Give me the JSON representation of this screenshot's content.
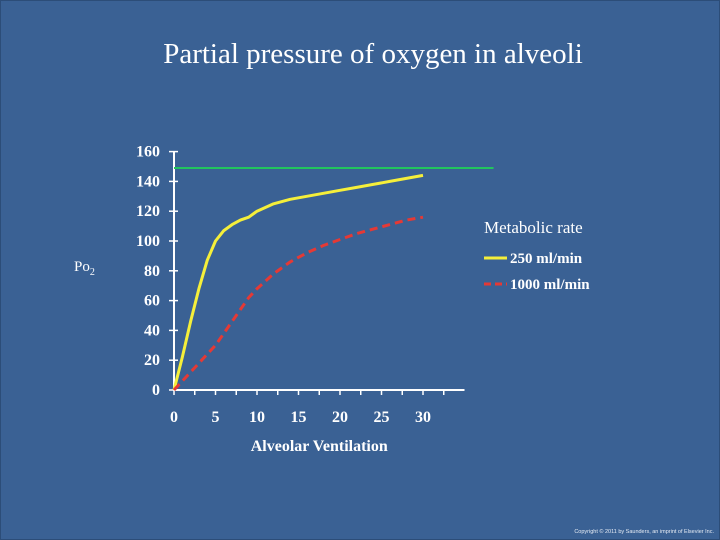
{
  "slide": {
    "title": "Partial pressure of oxygen in alveoli",
    "copyright": "Copyright © 2011 by Saunders, an imprint of Elsevier Inc."
  },
  "chart_data": {
    "type": "line",
    "title": "Partial pressure of oxygen in alveoli",
    "xlabel": "Alveolar Ventilation",
    "ylabel": "Po",
    "ylabel_subscript": "2",
    "xlim": [
      0,
      35
    ],
    "ylim": [
      0,
      160
    ],
    "xticks": [
      0,
      5,
      10,
      15,
      20,
      25,
      30
    ],
    "yticks": [
      0,
      20,
      40,
      60,
      80,
      100,
      120,
      140,
      160
    ],
    "legend_title": "Metabolic rate",
    "legend_position": "right",
    "grid": false,
    "reference_line": {
      "y": 149,
      "x": [
        0,
        38.5
      ],
      "color": "#22c55e"
    },
    "series": [
      {
        "name": "250 ml/min",
        "color": "#f5ef3a",
        "dash": "solid",
        "x": [
          0,
          1,
          2,
          3,
          4,
          5,
          6,
          7,
          8,
          9,
          10,
          12,
          14,
          16,
          18,
          20,
          22,
          24,
          26,
          28,
          30
        ],
        "y": [
          0,
          22,
          46,
          68,
          87,
          100,
          107,
          111,
          114,
          116,
          120,
          125,
          128,
          130,
          132,
          134,
          136,
          138,
          140,
          142,
          144
        ]
      },
      {
        "name": "1000 ml/min",
        "color": "#e53935",
        "dash": "dashed",
        "x": [
          0,
          1,
          2,
          3,
          4,
          5,
          6,
          7,
          8,
          9,
          10,
          12,
          14,
          16,
          18,
          20,
          22,
          24,
          26,
          28,
          30
        ],
        "y": [
          0,
          6,
          12,
          18,
          24,
          30,
          38,
          46,
          54,
          62,
          68,
          78,
          86,
          92,
          97,
          101,
          105,
          108,
          111,
          114,
          116
        ]
      }
    ]
  }
}
